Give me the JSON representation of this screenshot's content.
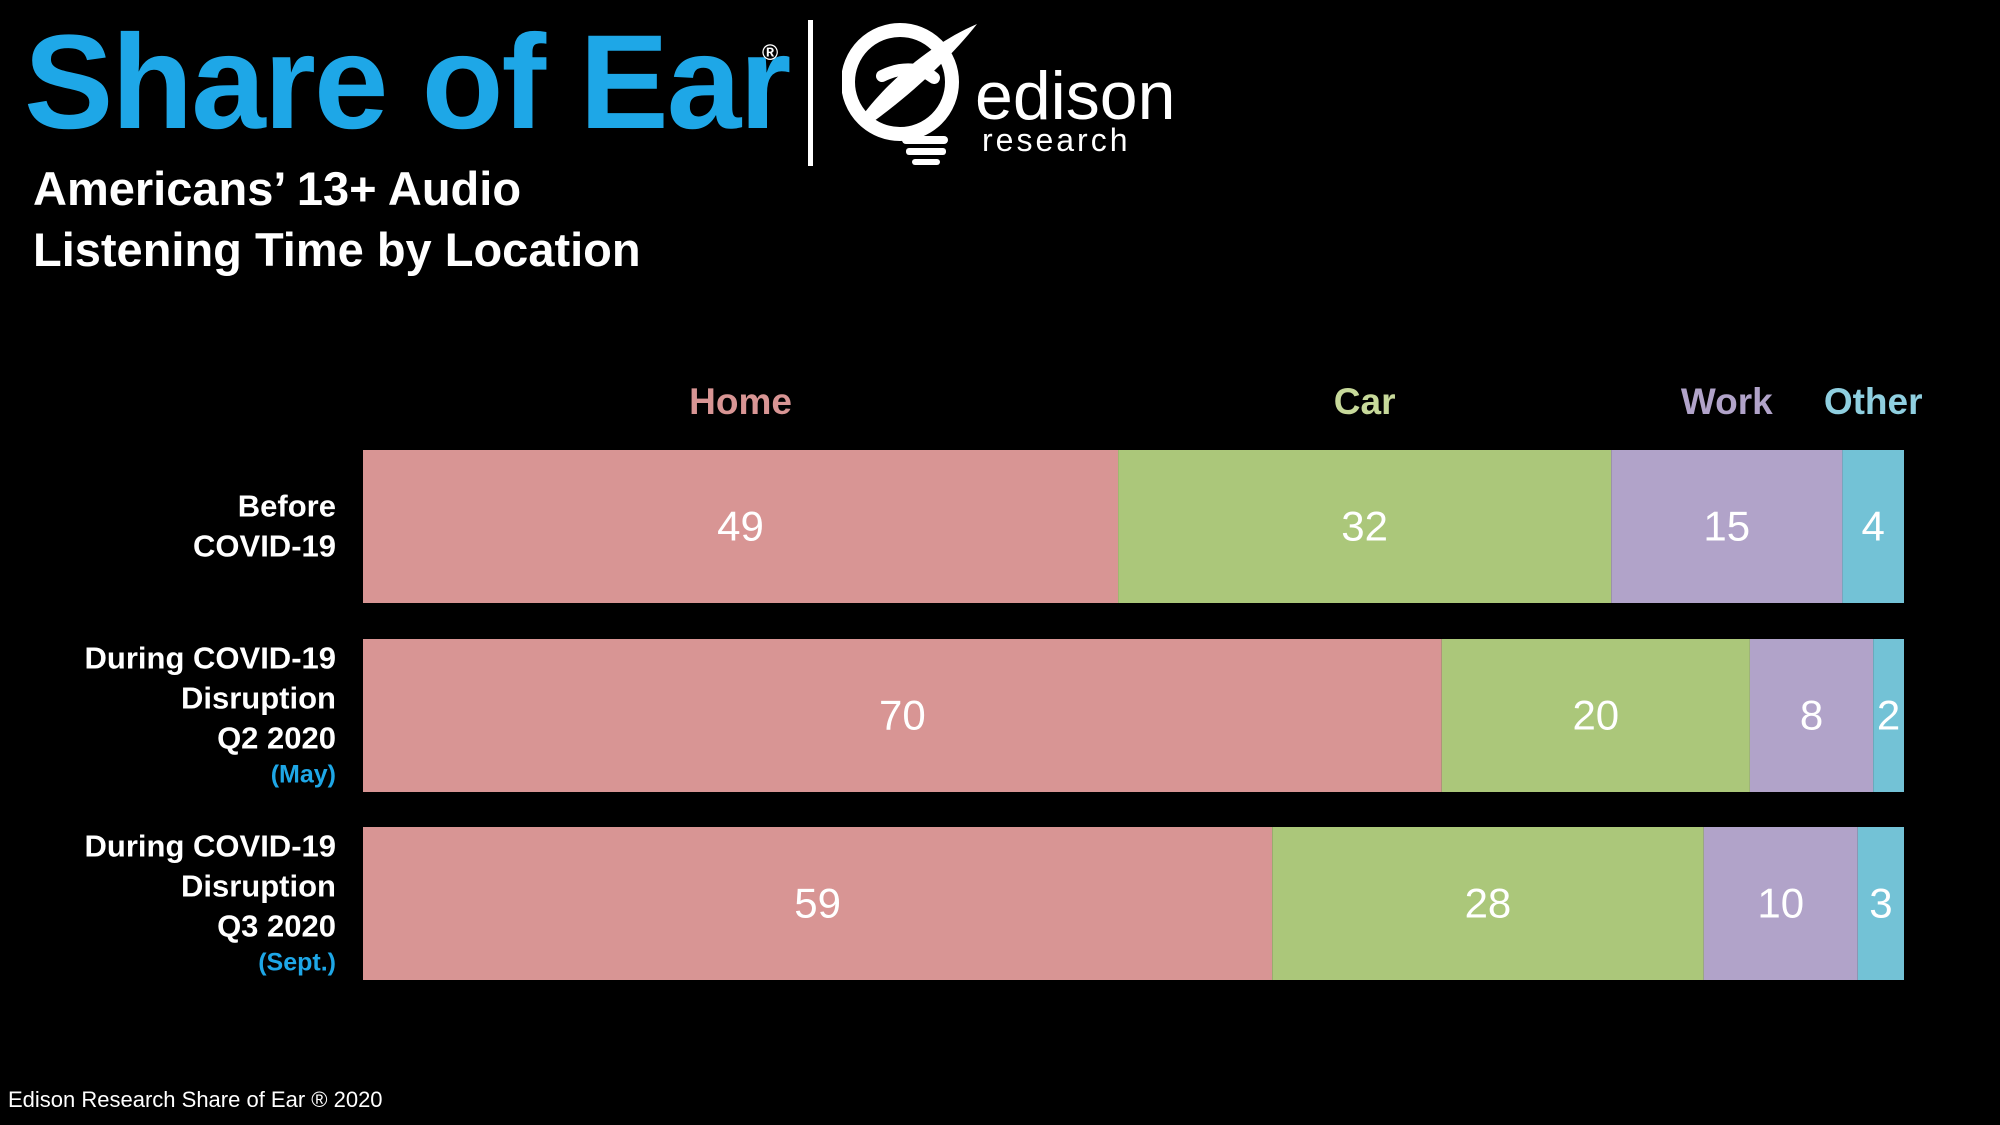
{
  "brand": {
    "title": "Share of Ear",
    "registered": "®",
    "title_color": "#1EA7E7",
    "logo_word": "edison",
    "logo_sub": "research"
  },
  "subtitle": {
    "line1": "Americans’ 13+ Audio",
    "line2": "Listening Time by Location"
  },
  "footer": "Edison Research Share of Ear ® 2020",
  "chart_data": {
    "type": "bar",
    "orientation": "horizontal",
    "stacked": true,
    "legend_position": "top",
    "xlim": [
      0,
      100
    ],
    "grid": false,
    "categories": [
      {
        "label_lines": [
          "Before",
          "COVID-19"
        ],
        "note": ""
      },
      {
        "label_lines": [
          "During COVID-19",
          "Disruption",
          "Q2 2020"
        ],
        "note": "(May)"
      },
      {
        "label_lines": [
          "During COVID-19",
          "Disruption",
          "Q3 2020"
        ],
        "note": "(Sept.)"
      }
    ],
    "note_color": "#1EA7E7",
    "series": [
      {
        "name": "Home",
        "color": "#D89594",
        "label_color": "#D89594",
        "values": [
          49,
          70,
          59
        ]
      },
      {
        "name": "Car",
        "color": "#ABC77A",
        "label_color": "#C7D99A",
        "values": [
          32,
          20,
          28
        ]
      },
      {
        "name": "Work",
        "color": "#B1A3C9",
        "label_color": "#B1A3C9",
        "values": [
          15,
          8,
          10
        ]
      },
      {
        "name": "Other",
        "color": "#73C2D6",
        "label_color": "#8FCFE0",
        "values": [
          4,
          2,
          3
        ]
      }
    ]
  }
}
